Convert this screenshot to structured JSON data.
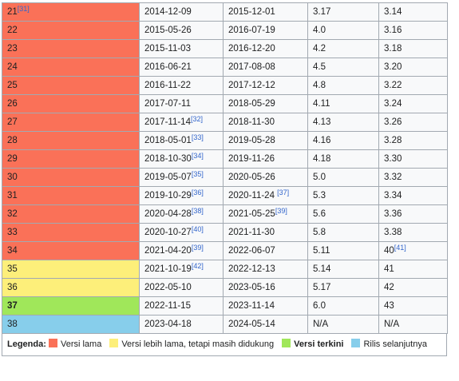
{
  "table": {
    "rows": [
      {
        "color": "#fa7158",
        "cells": [
          {
            "text": "21",
            "ref": "[31]"
          },
          "2014-12-09",
          "2015-12-01",
          "3.17",
          "3.14"
        ]
      },
      {
        "color": "#fa7158",
        "cells": [
          "22",
          "2015-05-26",
          "2016-07-19",
          "4.0",
          "3.16"
        ]
      },
      {
        "color": "#fa7158",
        "cells": [
          "23",
          "2015-11-03",
          "2016-12-20",
          "4.2",
          "3.18"
        ]
      },
      {
        "color": "#fa7158",
        "cells": [
          "24",
          "2016-06-21",
          "2017-08-08",
          "4.5",
          "3.20"
        ]
      },
      {
        "color": "#fa7158",
        "cells": [
          "25",
          "2016-11-22",
          "2017-12-12",
          "4.8",
          "3.22"
        ]
      },
      {
        "color": "#fa7158",
        "cells": [
          "26",
          "2017-07-11",
          "2018-05-29",
          "4.11",
          "3.24"
        ]
      },
      {
        "color": "#fa7158",
        "cells": [
          "27",
          {
            "text": "2017-11-14",
            "ref": "[32]"
          },
          "2018-11-30",
          "4.13",
          "3.26"
        ]
      },
      {
        "color": "#fa7158",
        "cells": [
          "28",
          {
            "text": "2018-05-01",
            "ref": "[33]"
          },
          "2019-05-28",
          "4.16",
          "3.28"
        ]
      },
      {
        "color": "#fa7158",
        "cells": [
          "29",
          {
            "text": "2018-10-30",
            "ref": "[34]"
          },
          "2019-11-26",
          "4.18",
          "3.30"
        ]
      },
      {
        "color": "#fa7158",
        "cells": [
          "30",
          {
            "text": "2019-05-07",
            "ref": "[35]"
          },
          "2020-05-26",
          "5.0",
          "3.32"
        ]
      },
      {
        "color": "#fa7158",
        "cells": [
          "31",
          {
            "text": "2019-10-29",
            "ref": "[36]"
          },
          {
            "text": "2020-11-24 ",
            "ref": "[37]"
          },
          "5.3",
          "3.34"
        ]
      },
      {
        "color": "#fa7158",
        "cells": [
          "32",
          {
            "text": "2020-04-28",
            "ref": "[38]"
          },
          {
            "text": "2021-05-25",
            "ref": "[39]"
          },
          "5.6",
          "3.36"
        ]
      },
      {
        "color": "#fa7158",
        "cells": [
          "33",
          {
            "text": "2020-10-27",
            "ref": "[40]"
          },
          "2021-11-30",
          "5.8",
          "3.38"
        ]
      },
      {
        "color": "#fa7158",
        "cells": [
          "34",
          {
            "text": "2021-04-20",
            "ref": "[39]"
          },
          "2022-06-07",
          "5.11",
          {
            "text": "40",
            "ref": "[41]"
          }
        ]
      },
      {
        "color": "#fdef7a",
        "cells": [
          "35",
          {
            "text": "2021-10-19",
            "ref": "[42]"
          },
          "2022-12-13",
          "5.14",
          "41"
        ]
      },
      {
        "color": "#fdef7a",
        "cells": [
          "36",
          "2022-05-10",
          "2023-05-16",
          "5.17",
          "42"
        ]
      },
      {
        "color": "#a0e75a",
        "bold": true,
        "cells": [
          "37",
          "2022-11-15",
          "2023-11-14",
          "6.0",
          "43"
        ]
      },
      {
        "color": "#87ceeb",
        "cells": [
          "38",
          "2023-04-18",
          "2024-05-14",
          "N/A",
          "N/A"
        ]
      }
    ]
  },
  "legend": {
    "title": "Legenda:",
    "items": [
      {
        "color": "#fa7158",
        "label": "Versi lama"
      },
      {
        "color": "#fdef7a",
        "label": "Versi lebih lama, tetapi masih didukung"
      },
      {
        "color": "#a0e75a",
        "label": "Versi terkini",
        "bold": true
      },
      {
        "color": "#87ceeb",
        "label": "Rilis selanjutnya"
      }
    ]
  }
}
